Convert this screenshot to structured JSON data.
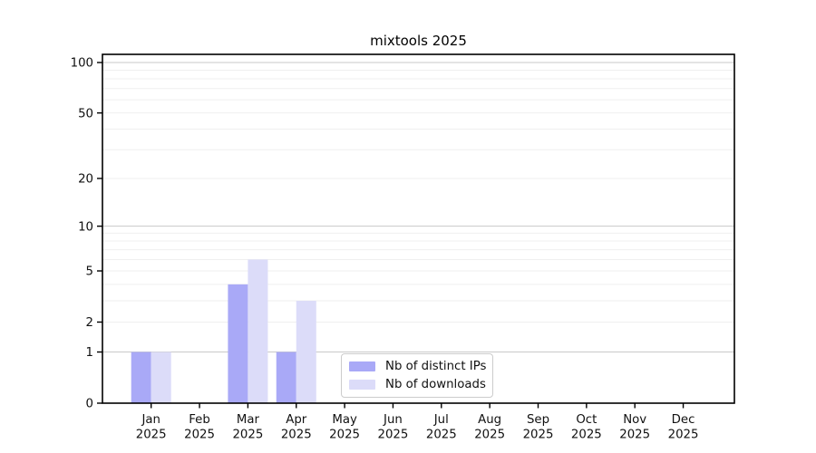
{
  "chart_data": {
    "type": "bar",
    "title": "mixtools 2025",
    "categories": [
      "Jan 2025",
      "Feb 2025",
      "Mar 2025",
      "Apr 2025",
      "May 2025",
      "Jun 2025",
      "Jul 2025",
      "Aug 2025",
      "Sep 2025",
      "Oct 2025",
      "Nov 2025",
      "Dec 2025"
    ],
    "series": [
      {
        "name": "Nb of distinct IPs",
        "color": "#a9a9f7",
        "values": [
          1,
          0,
          4,
          1,
          0,
          0,
          0,
          0,
          0,
          0,
          0,
          0
        ]
      },
      {
        "name": "Nb of downloads",
        "color": "#dcdcf9",
        "values": [
          1,
          0,
          6,
          3,
          0,
          0,
          0,
          0,
          0,
          0,
          0,
          0
        ]
      }
    ],
    "xlabel": "",
    "ylabel": "",
    "y_scale": "log10(1+x)",
    "ylim": [
      0,
      112
    ],
    "yticks": [
      0,
      1,
      2,
      5,
      10,
      20,
      50,
      100
    ],
    "grid": "horizontal",
    "grid_major_values": [
      1,
      10,
      100
    ],
    "grid_minor_values": [
      2,
      3,
      4,
      5,
      6,
      7,
      8,
      9,
      20,
      30,
      40,
      50,
      60,
      70,
      80,
      90
    ],
    "legend_position": "inside-bottom-center",
    "colors": {
      "grid_major": "#c9c9c9",
      "grid_minor": "#efefef",
      "axis_frame": "#000000",
      "background": "#ffffff"
    }
  }
}
